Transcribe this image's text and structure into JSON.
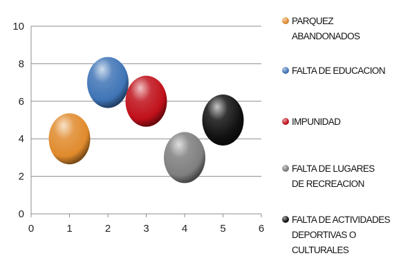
{
  "chart_data": {
    "type": "scatter",
    "title": "",
    "xlabel": "",
    "ylabel": "",
    "xlim": [
      0,
      6
    ],
    "ylim": [
      0,
      10
    ],
    "x_ticks": [
      "0",
      "1",
      "2",
      "3",
      "4",
      "5",
      "6"
    ],
    "y_ticks": [
      "0",
      "2",
      "4",
      "6",
      "8",
      "10"
    ],
    "grid": "horizontal",
    "legend_position": "right",
    "series": [
      {
        "name": "PARQUEZ ABANDONADOS",
        "x": 1,
        "y": 4,
        "color": "#e08a2c"
      },
      {
        "name": "FALTA DE EDUCACION",
        "x": 2,
        "y": 7,
        "color": "#3f74b6"
      },
      {
        "name": "IMPUNIDAD",
        "x": 3,
        "y": 6,
        "color": "#c0101a"
      },
      {
        "name": "FALTA DE LUGARES DE RECREACION",
        "x": 4,
        "y": 3,
        "color": "#7f7f7f"
      },
      {
        "name": "FALTA DE ACTIVIDADES DEPORTIVAS O CULTURALES",
        "x": 5,
        "y": 5,
        "color": "#111111"
      }
    ]
  }
}
